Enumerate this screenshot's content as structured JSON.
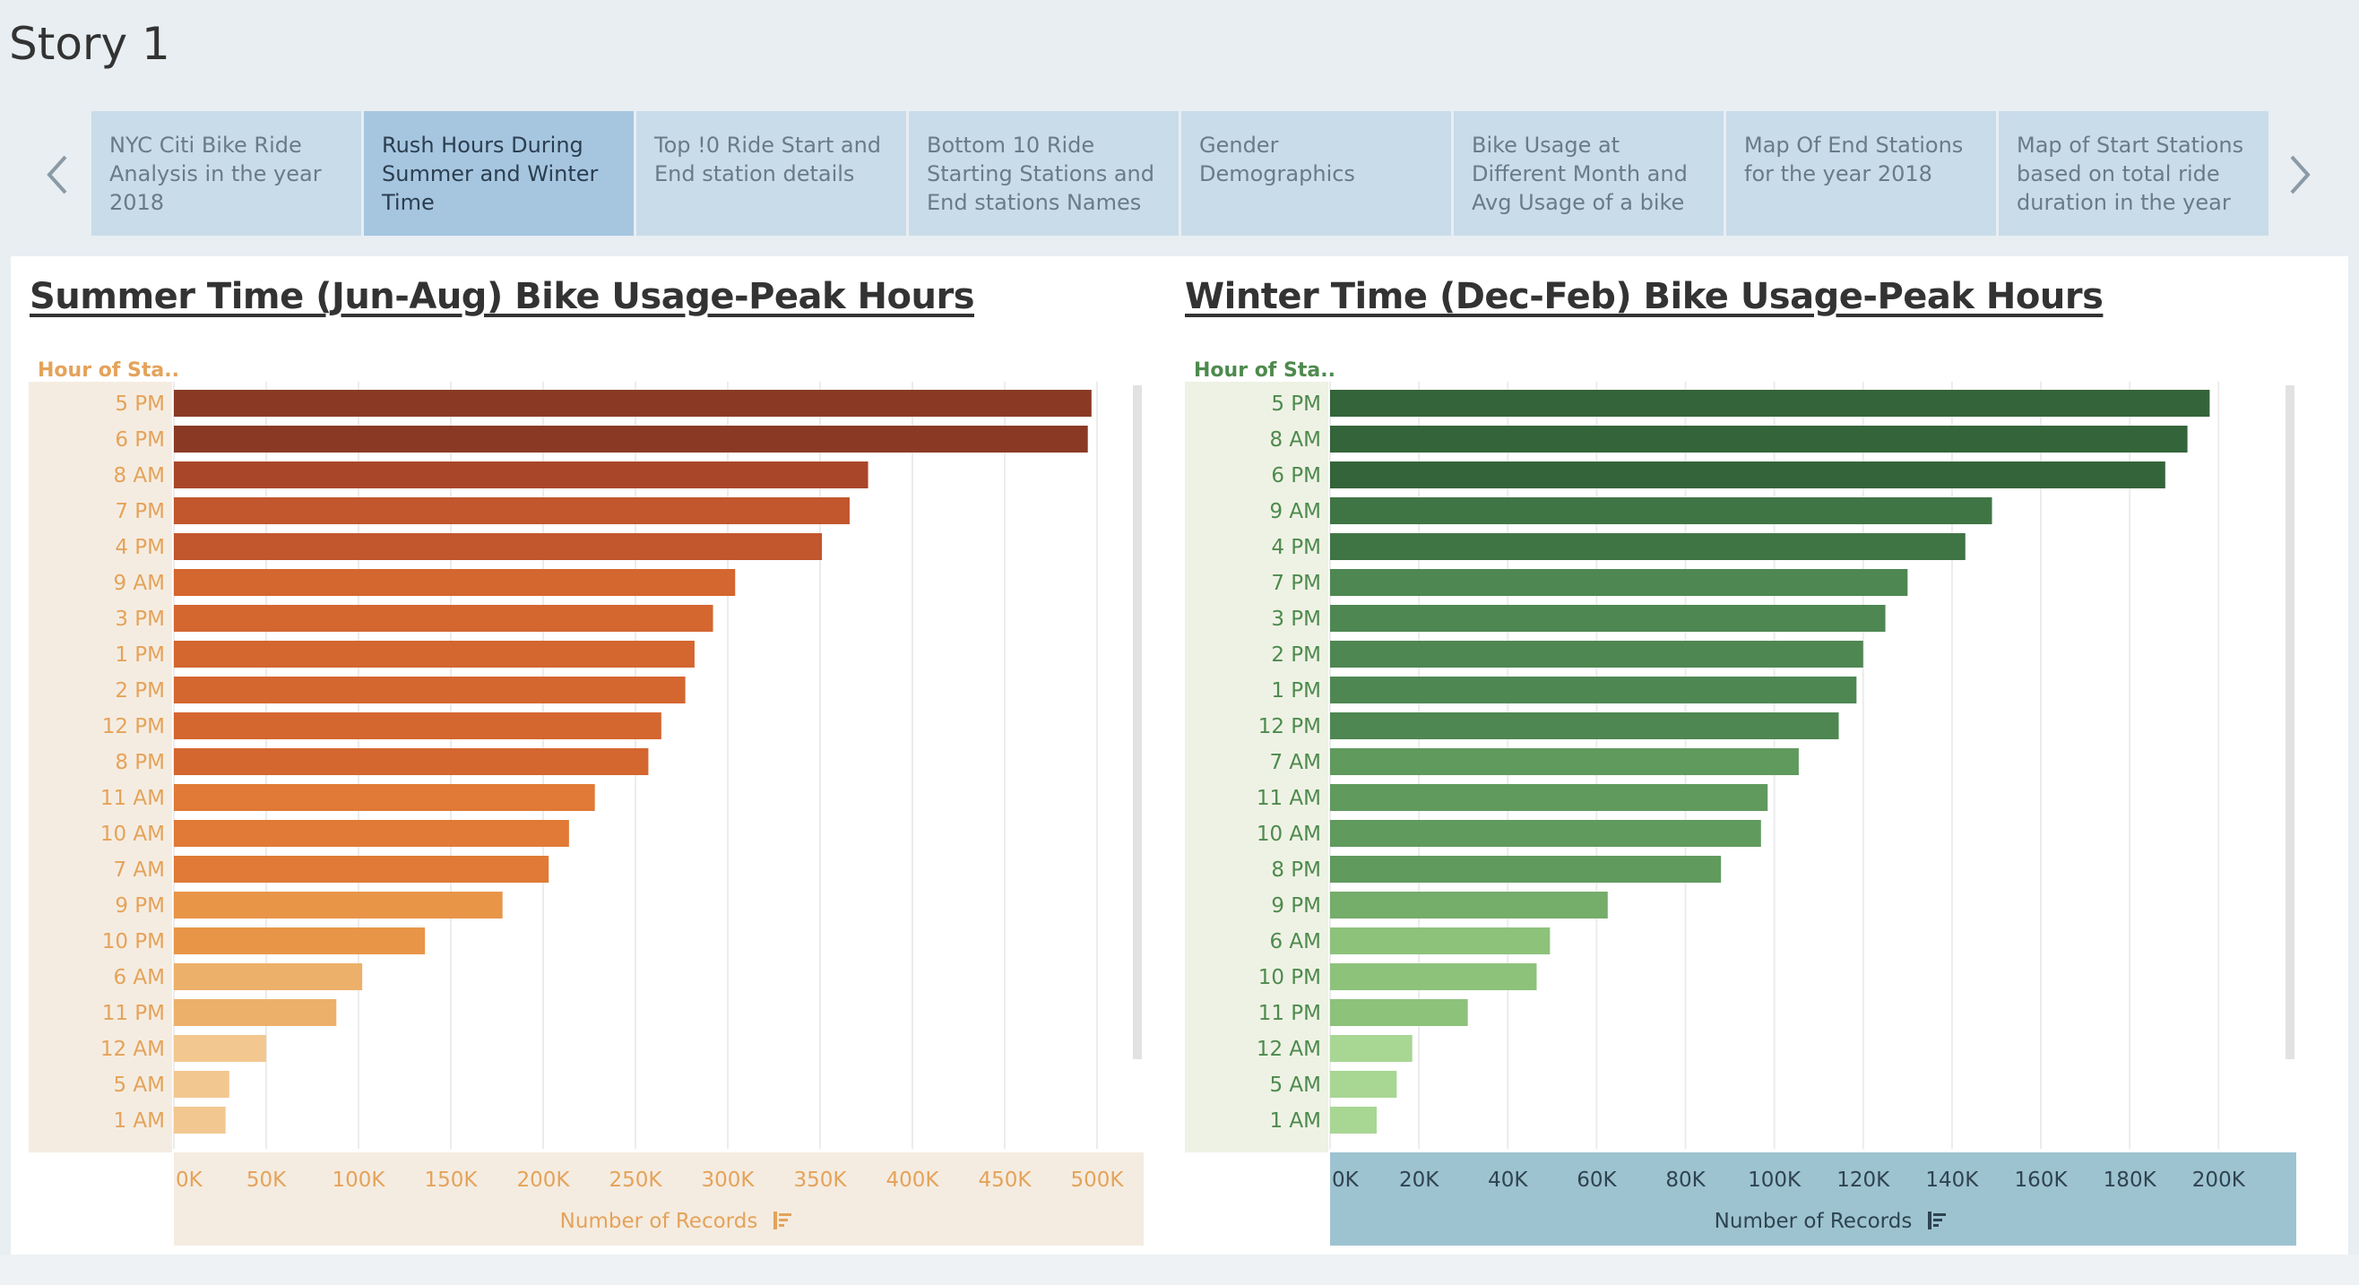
{
  "story": {
    "title": "Story 1"
  },
  "nav": {
    "prev_icon": "chevron-left-icon",
    "next_icon": "chevron-right-icon"
  },
  "tabs": [
    {
      "label": "NYC Citi Bike Ride Analysis in the year 2018",
      "active": false
    },
    {
      "label": "Rush Hours During Summer and Winter Time",
      "active": true
    },
    {
      "label": "Top !0 Ride Start and End station details",
      "active": false
    },
    {
      "label": "Bottom 10 Ride Starting Stations and End stations Names",
      "active": false
    },
    {
      "label": "Gender Demographics",
      "active": false
    },
    {
      "label": "Bike Usage at Different Month and Avg Usage of a bike",
      "active": false
    },
    {
      "label": "Map Of End Stations for the year 2018",
      "active": false
    },
    {
      "label": "Map of Start Stations based on total ride duration in the year",
      "active": false
    }
  ],
  "chart_data": [
    {
      "type": "bar",
      "title": "Summer Time (Jun-Aug) Bike Usage-Peak Hours",
      "row_header": "Hour of Sta..",
      "xlabel": "Number of Records",
      "categories": [
        "5 PM",
        "6 PM",
        "8 AM",
        "7 PM",
        "4 PM",
        "9 AM",
        "3 PM",
        "1 PM",
        "2 PM",
        "12 PM",
        "8 PM",
        "11 AM",
        "10 AM",
        "7 AM",
        "9 PM",
        "10 PM",
        "6 AM",
        "11 PM",
        "12 AM",
        "5 AM",
        "1 AM"
      ],
      "values": [
        497000,
        495000,
        376000,
        366000,
        351000,
        304000,
        292000,
        282000,
        277000,
        264000,
        257000,
        228000,
        214000,
        203000,
        178000,
        136000,
        102000,
        88000,
        50000,
        30000,
        28000
      ],
      "xlim": [
        0,
        500000
      ],
      "ticks": [
        "0K",
        "50K",
        "100K",
        "150K",
        "200K",
        "250K",
        "300K",
        "350K",
        "400K",
        "450K",
        "500K"
      ],
      "tick_values": [
        0,
        50000,
        100000,
        150000,
        200000,
        250000,
        300000,
        350000,
        400000,
        450000,
        500000
      ],
      "colors": [
        "#8a3a24",
        "#a9462a",
        "#c2562d",
        "#d46630",
        "#e07a36",
        "#e89548",
        "#edb06a",
        "#f2c890"
      ],
      "panel_color": "#f5ece1",
      "label_color": "#e4a35a",
      "grid": true
    },
    {
      "type": "bar",
      "title": "Winter Time (Dec-Feb) Bike Usage-Peak Hours",
      "row_header": "Hour of Sta..",
      "xlabel": "Number of Records",
      "categories": [
        "5 PM",
        "8 AM",
        "6 PM",
        "9 AM",
        "4 PM",
        "7 PM",
        "3 PM",
        "2 PM",
        "1 PM",
        "12 PM",
        "7 AM",
        "11 AM",
        "10 AM",
        "8 PM",
        "9 PM",
        "6 AM",
        "10 PM",
        "11 PM",
        "12 AM",
        "5 AM",
        "1 AM"
      ],
      "values": [
        198000,
        193000,
        188000,
        149000,
        143000,
        130000,
        125000,
        120000,
        118500,
        114500,
        105500,
        98500,
        97000,
        88000,
        62500,
        49500,
        46500,
        31000,
        18500,
        15000,
        10500
      ],
      "xlim": [
        0,
        207000
      ],
      "ticks": [
        "0K",
        "20K",
        "40K",
        "60K",
        "80K",
        "100K",
        "120K",
        "140K",
        "160K",
        "180K",
        "200K"
      ],
      "tick_values": [
        0,
        20000,
        40000,
        60000,
        80000,
        100000,
        120000,
        140000,
        160000,
        180000,
        200000
      ],
      "colors": [
        "#34643a",
        "#3f7545",
        "#4e8752",
        "#609a5d",
        "#75ad6a",
        "#8dc27b",
        "#a8d693"
      ],
      "panel_color": "#eef2e4",
      "label_color": "#4e8a4e",
      "grid": true
    }
  ]
}
